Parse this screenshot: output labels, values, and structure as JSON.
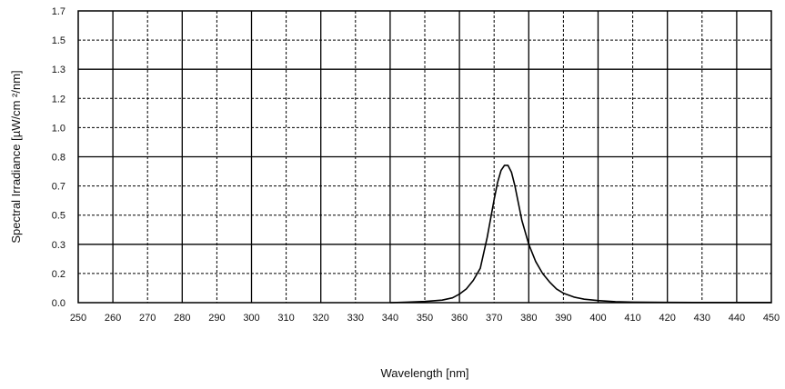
{
  "chart_data": {
    "type": "line",
    "title": "",
    "xlabel": "Wavelength    [nm]",
    "ylabel": "Spectral Irradiance    [µW/cm ²/nm]",
    "xlim": [
      250,
      450
    ],
    "ylim": [
      0,
      1.7
    ],
    "x_ticks": [
      250,
      260,
      270,
      280,
      290,
      300,
      310,
      320,
      330,
      340,
      350,
      360,
      370,
      380,
      390,
      400,
      410,
      420,
      430,
      440,
      450
    ],
    "y_ticks": [
      0.0,
      0.2,
      0.3,
      0.5,
      0.7,
      0.8,
      1.0,
      1.2,
      1.3,
      1.5,
      1.7
    ],
    "y_tick_labels": [
      "0.0",
      "0.2",
      "0.3",
      "0.5",
      "0.7",
      "0.8",
      "1.0",
      "1.2",
      "1.3",
      "1.5",
      "1.7"
    ],
    "grid": true,
    "series": [
      {
        "color": "#000000",
        "x": [
          340,
          345,
          350,
          355,
          358,
          360,
          362,
          364,
          366,
          368,
          370,
          371,
          372,
          373,
          374,
          375,
          376,
          377,
          378,
          380,
          382,
          384,
          386,
          388,
          390,
          393,
          396,
          400,
          405,
          410,
          420,
          430,
          440,
          450
        ],
        "y": [
          0.0,
          0.003,
          0.007,
          0.015,
          0.028,
          0.05,
          0.08,
          0.13,
          0.2,
          0.38,
          0.6,
          0.7,
          0.77,
          0.8,
          0.8,
          0.76,
          0.68,
          0.58,
          0.48,
          0.34,
          0.24,
          0.17,
          0.12,
          0.08,
          0.055,
          0.033,
          0.02,
          0.012,
          0.006,
          0.003,
          0.0015,
          0.001,
          0.001,
          0.001
        ]
      }
    ]
  }
}
